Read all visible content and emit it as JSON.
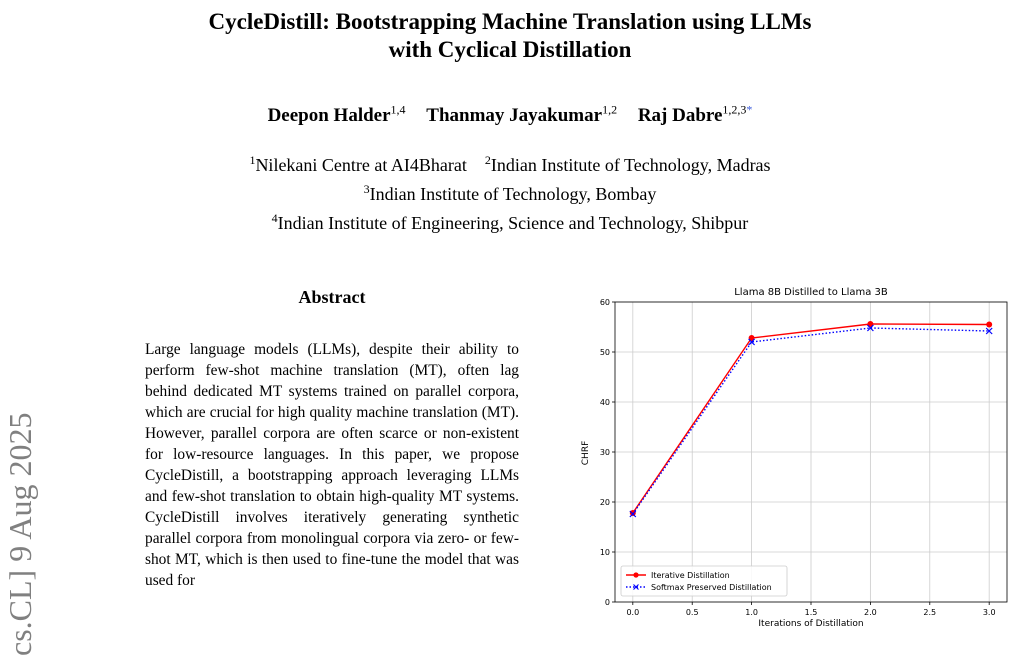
{
  "sidebar": {
    "arxiv_id": "cs.CL] 9 Aug 2025"
  },
  "paper": {
    "title_line1": "CycleDistill: Bootstrapping Machine Translation using LLMs",
    "title_line2": "with Cyclical Distillation",
    "authors": [
      {
        "name": "Deepon Halder",
        "sup": "1,4"
      },
      {
        "name": "Thanmay Jayakumar",
        "sup": "1,2"
      },
      {
        "name": "Raj Dabre",
        "sup": "1,2,3",
        "mark": "*"
      }
    ],
    "affiliations": [
      {
        "sup": "1",
        "text": "Nilekani Centre at AI4Bharat"
      },
      {
        "sup": "2",
        "text": "Indian Institute of Technology, Madras"
      },
      {
        "sup": "3",
        "text": "Indian Institute of Technology, Bombay"
      },
      {
        "sup": "4",
        "text": "Indian Institute of Engineering, Science and Technology, Shibpur"
      }
    ],
    "abstract_heading": "Abstract",
    "abstract_text": "Large language models (LLMs), despite their ability to perform few-shot machine translation (MT), often lag behind dedicated MT systems trained on parallel corpora, which are crucial for high quality machine translation (MT). However, parallel corpora are often scarce or non-existent for low-resource languages. In this paper, we propose CycleDistill, a bootstrapping approach leveraging LLMs and few-shot translation to obtain high-quality MT systems. CycleDistill involves iteratively generating synthetic parallel corpora from monolingual corpora via zero- or few-shot MT, which is then used to fine-tune the model that was used for"
  },
  "chart_data": {
    "type": "line",
    "title": "Llama 8B Distilled to Llama 3B",
    "xlabel": "Iterations of Distillation",
    "ylabel": "CHRF",
    "xlim": [
      -0.15,
      3.15
    ],
    "ylim": [
      0,
      60
    ],
    "xticks": [
      0.0,
      0.5,
      1.0,
      1.5,
      2.0,
      2.5,
      3.0
    ],
    "xtick_labels": [
      "0.0",
      "0.5",
      "1.0",
      "1.5",
      "2.0",
      "2.5",
      "3.0"
    ],
    "yticks": [
      0,
      10,
      20,
      30,
      40,
      50,
      60
    ],
    "ytick_labels": [
      "0",
      "10",
      "20",
      "30",
      "40",
      "50",
      "60"
    ],
    "grid": true,
    "legend_position": "lower-left",
    "x": [
      0,
      1,
      2,
      3
    ],
    "series": [
      {
        "name": "Iterative Distillation",
        "values": [
          17.8,
          52.8,
          55.6,
          55.5
        ],
        "color": "#ff0000",
        "style": "solid",
        "marker": "circle"
      },
      {
        "name": "Softmax Preserved Distillation",
        "values": [
          17.6,
          52.0,
          54.8,
          54.2
        ],
        "color": "#0000ff",
        "style": "dotted",
        "marker": "x"
      }
    ]
  }
}
